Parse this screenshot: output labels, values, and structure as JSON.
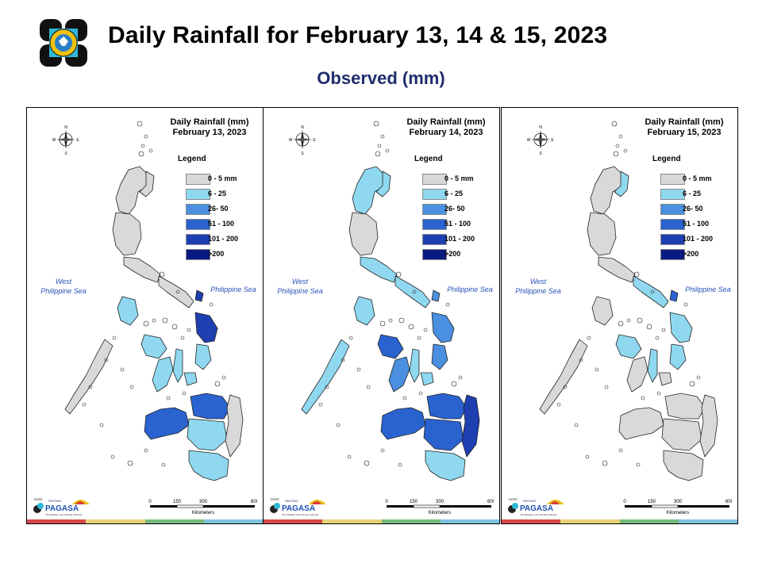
{
  "header": {
    "title": "Daily Rainfall for February 13, 14 & 15, 2023",
    "subtitle": "Observed (mm)"
  },
  "colors": {
    "c0": "#d9d9d9",
    "c1": "#8fd8f0",
    "c2": "#4a8fe0",
    "c3": "#2a63d0",
    "c4": "#1d3fb0",
    "c5": "#0b1a80",
    "border": "#222222",
    "subtitle": "#1f2d6b"
  },
  "legend": {
    "title": "Legend",
    "items": [
      {
        "label": "0 - 5 mm",
        "color": "#d9d9d9"
      },
      {
        "label": "6 - 25",
        "color": "#8fd8f0"
      },
      {
        "label": "26- 50",
        "color": "#4a8fe0"
      },
      {
        "label": "51 - 100",
        "color": "#2a63d0"
      },
      {
        "label": "101 - 200",
        "color": "#1d3fb0"
      },
      {
        "label": ">200",
        "color": "#0b1a80"
      }
    ]
  },
  "map_labels": {
    "west_sea_1": "West",
    "west_sea_2": "Philippine Sea",
    "east_sea": "Philippine Sea",
    "compass_n": "N",
    "compass_s": "S",
    "compass_e": "E",
    "compass_w": "W",
    "scale_ticks": [
      "0",
      "150",
      "300",
      "600"
    ],
    "scale_unit": "Kilometers",
    "logo_dost": "DOST",
    "logo_pagasa": "PAGASA",
    "logo_tagline": "The Weather and Climate Authority",
    "logo_payong": "PAYONG"
  },
  "panels": [
    {
      "title_line1": "Daily Rainfall (mm)",
      "title_line2": "February 13, 2023",
      "regions": {
        "luzon_north": "c0",
        "cagayan_east": "c0",
        "luzon_central": "c0",
        "luzon_south": "c0",
        "bicol": "c0",
        "catanduanes": "c4",
        "samar": "c4",
        "leyte": "c1",
        "mindoro": "c1",
        "panay": "c1",
        "negros": "c1",
        "cebu": "c1",
        "bohol": "c1",
        "palawan": "c0",
        "zamboanga": "c3",
        "mindanao_north": "c3",
        "mindanao_central": "c1",
        "mindanao_east": "c0",
        "mindanao_south": "c1"
      }
    },
    {
      "title_line1": "Daily Rainfall (mm)",
      "title_line2": "February 14, 2023",
      "regions": {
        "luzon_north": "c1",
        "cagayan_east": "c1",
        "luzon_central": "c0",
        "luzon_south": "c1",
        "bicol": "c1",
        "catanduanes": "c2",
        "samar": "c2",
        "leyte": "c2",
        "mindoro": "c1",
        "panay": "c3",
        "negros": "c2",
        "cebu": "c1",
        "bohol": "c1",
        "palawan": "c1",
        "zamboanga": "c3",
        "mindanao_north": "c3",
        "mindanao_central": "c3",
        "mindanao_east": "c4",
        "mindanao_south": "c1"
      }
    },
    {
      "title_line1": "Daily Rainfall (mm)",
      "title_line2": "February 15, 2023",
      "regions": {
        "luzon_north": "c0",
        "cagayan_east": "c1",
        "luzon_central": "c0",
        "luzon_south": "c0",
        "bicol": "c1",
        "catanduanes": "c3",
        "samar": "c1",
        "leyte": "c1",
        "mindoro": "c0",
        "panay": "c1",
        "negros": "c0",
        "cebu": "c1",
        "bohol": "c0",
        "palawan": "c0",
        "zamboanga": "c0",
        "mindanao_north": "c0",
        "mindanao_central": "c0",
        "mindanao_east": "c0",
        "mindanao_south": "c0"
      }
    }
  ]
}
